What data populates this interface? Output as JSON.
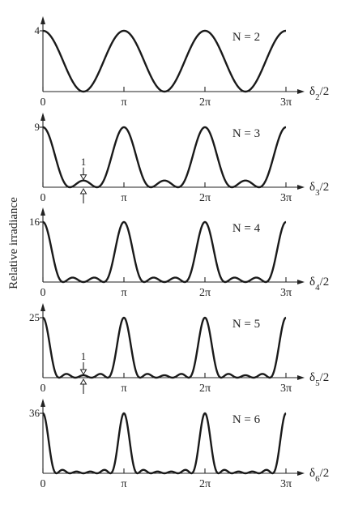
{
  "ylabel": "Relative irradiance",
  "chart_data": [
    {
      "type": "line",
      "N": 2,
      "annotation": "N = 2",
      "ymax_label": "4",
      "xlabel": "δ2/2",
      "x_ticks": [
        "0",
        "π",
        "2π",
        "3π"
      ],
      "xlim": [
        0,
        3.14159
      ],
      "ylim": [
        0,
        4
      ],
      "function": "irradiance = [sin(N·x)/sin(x)]^2, x = δ/2",
      "local_max_marker": null,
      "series": [
        {
          "x": [
            0,
            0.785,
            1.571,
            2.356,
            3.142
          ],
          "values": [
            4,
            2,
            0,
            2,
            4
          ]
        }
      ]
    },
    {
      "type": "line",
      "N": 3,
      "annotation": "N = 3",
      "ymax_label": "9",
      "xlabel": "δ3/2",
      "x_ticks": [
        "0",
        "π",
        "2π",
        "3π"
      ],
      "xlim": [
        0,
        3.14159
      ],
      "ylim": [
        0,
        9
      ],
      "function": "irradiance = [sin(N·x)/sin(x)]^2, x = δ/2",
      "local_max_marker": {
        "label": "1",
        "x": 1.5708,
        "value": 1
      },
      "series": [
        {
          "x": [
            0,
            1.047,
            1.571,
            2.094,
            3.142
          ],
          "values": [
            9,
            0,
            1,
            0,
            9
          ]
        }
      ]
    },
    {
      "type": "line",
      "N": 4,
      "annotation": "N = 4",
      "ymax_label": "16",
      "xlabel": "δ4/2",
      "x_ticks": [
        "0",
        "π",
        "2π",
        "3π"
      ],
      "xlim": [
        0,
        3.14159
      ],
      "ylim": [
        0,
        16
      ],
      "function": "irradiance = [sin(N·x)/sin(x)]^2, x = δ/2",
      "local_max_marker": null,
      "series": [
        {
          "x": [
            0,
            0.785,
            1.571,
            2.356,
            3.142
          ],
          "values": [
            16,
            0,
            0,
            0,
            16
          ]
        }
      ]
    },
    {
      "type": "line",
      "N": 5,
      "annotation": "N = 5",
      "ymax_label": "25",
      "xlabel": "δ5/2",
      "x_ticks": [
        "0",
        "π",
        "2π",
        "3π"
      ],
      "xlim": [
        0,
        3.14159
      ],
      "ylim": [
        0,
        25
      ],
      "function": "irradiance = [sin(N·x)/sin(x)]^2, x = δ/2",
      "local_max_marker": {
        "label": "1",
        "x": 1.5708,
        "value": 1
      },
      "series": [
        {
          "x": [
            0,
            0.628,
            1.571,
            2.513,
            3.142
          ],
          "values": [
            25,
            0,
            1,
            0,
            25
          ]
        }
      ]
    },
    {
      "type": "line",
      "N": 6,
      "annotation": "N = 6",
      "ymax_label": "36",
      "xlabel": "δ6/2",
      "x_ticks": [
        "0",
        "π",
        "2π",
        "3π"
      ],
      "xlim": [
        0,
        3.14159
      ],
      "ylim": [
        0,
        36
      ],
      "function": "irradiance = [sin(N·x)/sin(x)]^2, x = δ/2",
      "local_max_marker": null,
      "series": [
        {
          "x": [
            0,
            0.524,
            1.571,
            2.618,
            3.142
          ],
          "values": [
            36,
            0,
            0,
            0,
            36
          ]
        }
      ]
    }
  ]
}
